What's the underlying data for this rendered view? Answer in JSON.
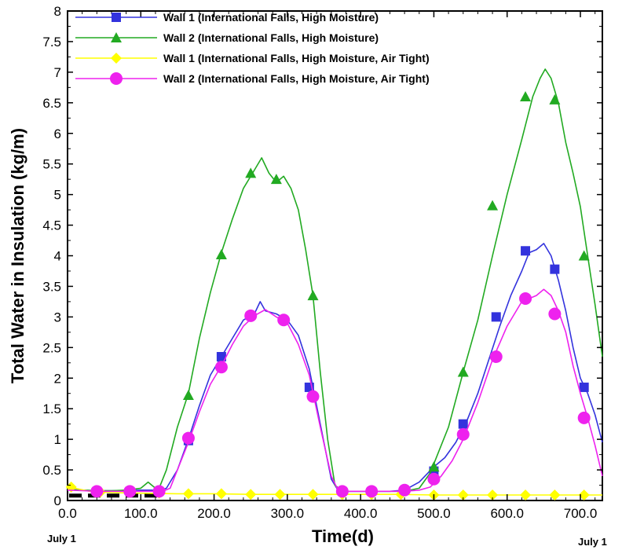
{
  "chart_data": {
    "type": "line",
    "xlabel": "Time(d)",
    "ylabel": "Total Water in Insulation (kg/m)",
    "xlim": [
      0,
      730
    ],
    "ylim": [
      0,
      8
    ],
    "x_ticks": [
      0,
      100,
      200,
      300,
      400,
      500,
      600,
      700
    ],
    "x_tick_labels": [
      "0.0",
      "100.0",
      "200.0",
      "300.0",
      "400.0",
      "500.0",
      "600.0",
      "700.0"
    ],
    "y_ticks": [
      0,
      0.5,
      1,
      1.5,
      2,
      2.5,
      3,
      3.5,
      4,
      4.5,
      5,
      5.5,
      6,
      6.5,
      7,
      7.5,
      8
    ],
    "y_tick_labels": [
      "0",
      "0.5",
      "1",
      "1.5",
      "2",
      "2.5",
      "3",
      "3.5",
      "4",
      "4.5",
      "5",
      "5.5",
      "6",
      "6.5",
      "7",
      "7.5",
      "8"
    ],
    "date_labels": {
      "start": "July 1",
      "end": "July 1"
    },
    "legend_position": "top-left",
    "grid": false,
    "series": [
      {
        "name": "Wall 1 (International Falls, High Moisture)",
        "color": "#3333dd",
        "marker": "square",
        "x": [
          0,
          20,
          40,
          60,
          80,
          100,
          115,
          125,
          135,
          150,
          165,
          180,
          195,
          210,
          225,
          240,
          255,
          263,
          270,
          285,
          300,
          315,
          330,
          345,
          360,
          370,
          380,
          400,
          420,
          440,
          460,
          480,
          500,
          515,
          530,
          545,
          560,
          575,
          590,
          605,
          620,
          630,
          640,
          650,
          660,
          670,
          680,
          690,
          700,
          710,
          720,
          730
        ],
        "y": [
          0.18,
          0.17,
          0.16,
          0.16,
          0.16,
          0.17,
          0.17,
          0.16,
          0.2,
          0.5,
          1.0,
          1.55,
          2.05,
          2.35,
          2.65,
          2.95,
          3.05,
          3.25,
          3.1,
          3.05,
          2.95,
          2.7,
          2.15,
          1.25,
          0.35,
          0.15,
          0.15,
          0.15,
          0.15,
          0.15,
          0.17,
          0.3,
          0.55,
          0.7,
          0.95,
          1.3,
          1.75,
          2.3,
          2.85,
          3.35,
          3.75,
          4.05,
          4.1,
          4.2,
          4.0,
          3.6,
          3.1,
          2.5,
          2.0,
          1.75,
          1.4,
          0.95
        ],
        "marker_x": [
          165,
          210,
          330,
          500,
          540,
          585,
          625,
          665,
          705
        ],
        "marker_y": [
          0.98,
          2.35,
          1.85,
          0.48,
          1.25,
          3.0,
          4.08,
          3.78,
          1.85
        ]
      },
      {
        "name": "Wall 2 (International Falls, High Moisture)",
        "color": "#22aa22",
        "marker": "triangle",
        "x": [
          0,
          20,
          40,
          60,
          80,
          100,
          110,
          118,
          125,
          135,
          150,
          165,
          180,
          195,
          210,
          225,
          240,
          255,
          265,
          275,
          285,
          295,
          305,
          315,
          325,
          335,
          345,
          355,
          365,
          375,
          400,
          420,
          440,
          460,
          480,
          495,
          505,
          520,
          540,
          560,
          580,
          600,
          620,
          635,
          645,
          652,
          660,
          670,
          680,
          690,
          700,
          710,
          720,
          730
        ],
        "y": [
          0.18,
          0.17,
          0.16,
          0.16,
          0.17,
          0.2,
          0.3,
          0.22,
          0.2,
          0.5,
          1.2,
          1.75,
          2.65,
          3.4,
          4.05,
          4.6,
          5.1,
          5.4,
          5.6,
          5.35,
          5.2,
          5.3,
          5.1,
          4.75,
          4.1,
          3.35,
          2.1,
          1.0,
          0.25,
          0.15,
          0.15,
          0.15,
          0.15,
          0.15,
          0.2,
          0.45,
          0.75,
          1.2,
          2.1,
          2.95,
          4.0,
          5.0,
          5.9,
          6.6,
          6.9,
          7.05,
          6.9,
          6.5,
          5.85,
          5.35,
          4.8,
          4.0,
          3.2,
          2.35
        ],
        "marker_x": [
          165,
          210,
          250,
          285,
          335,
          500,
          540,
          580,
          625,
          665,
          705
        ],
        "marker_y": [
          1.72,
          4.02,
          5.35,
          5.25,
          3.35,
          0.55,
          2.1,
          4.82,
          6.6,
          6.55,
          4.0
        ]
      },
      {
        "name": "Wall 1 (International Falls, High Moisture, Air Tight)",
        "color": "#ffff00",
        "marker": "diamond",
        "x": [
          0,
          10,
          30,
          60,
          100,
          150,
          200,
          250,
          300,
          350,
          400,
          450,
          500,
          550,
          600,
          650,
          700,
          730
        ],
        "y": [
          0.25,
          0.2,
          0.15,
          0.13,
          0.12,
          0.11,
          0.11,
          0.1,
          0.1,
          0.1,
          0.1,
          0.1,
          0.09,
          0.09,
          0.09,
          0.09,
          0.09,
          0.09
        ],
        "marker_x": [
          5,
          45,
          85,
          125,
          165,
          210,
          250,
          290,
          335,
          375,
          415,
          455,
          500,
          540,
          580,
          625,
          665,
          705
        ],
        "marker_y": [
          0.22,
          0.14,
          0.13,
          0.12,
          0.11,
          0.11,
          0.1,
          0.1,
          0.1,
          0.1,
          0.1,
          0.1,
          0.09,
          0.09,
          0.09,
          0.09,
          0.09,
          0.09
        ]
      },
      {
        "name": "Wall 2 (International Falls, High Moisture, Air Tight)",
        "color": "#ee22ee",
        "marker": "circle",
        "x": [
          0,
          20,
          40,
          60,
          80,
          100,
          120,
          130,
          140,
          150,
          165,
          180,
          195,
          210,
          225,
          240,
          255,
          270,
          285,
          300,
          315,
          330,
          345,
          360,
          370,
          380,
          400,
          420,
          440,
          460,
          480,
          495,
          510,
          525,
          540,
          560,
          580,
          600,
          620,
          640,
          650,
          660,
          670,
          680,
          690,
          700,
          710,
          720,
          730
        ],
        "y": [
          0.17,
          0.16,
          0.15,
          0.15,
          0.15,
          0.15,
          0.15,
          0.15,
          0.2,
          0.5,
          0.95,
          1.45,
          1.9,
          2.2,
          2.55,
          2.85,
          3.02,
          3.12,
          3.0,
          2.9,
          2.55,
          2.05,
          1.2,
          0.4,
          0.15,
          0.15,
          0.15,
          0.15,
          0.15,
          0.15,
          0.17,
          0.22,
          0.4,
          0.65,
          1.0,
          1.6,
          2.3,
          2.85,
          3.25,
          3.35,
          3.45,
          3.35,
          3.1,
          2.75,
          2.2,
          1.75,
          1.35,
          0.9,
          0.4
        ],
        "marker_x": [
          40,
          85,
          125,
          165,
          210,
          250,
          295,
          335,
          375,
          415,
          460,
          500,
          540,
          585,
          625,
          665,
          705
        ],
        "marker_y": [
          0.15,
          0.15,
          0.15,
          1.02,
          2.18,
          3.02,
          2.95,
          1.7,
          0.15,
          0.15,
          0.17,
          0.35,
          1.08,
          2.35,
          3.3,
          3.05,
          1.35
        ]
      }
    ]
  }
}
